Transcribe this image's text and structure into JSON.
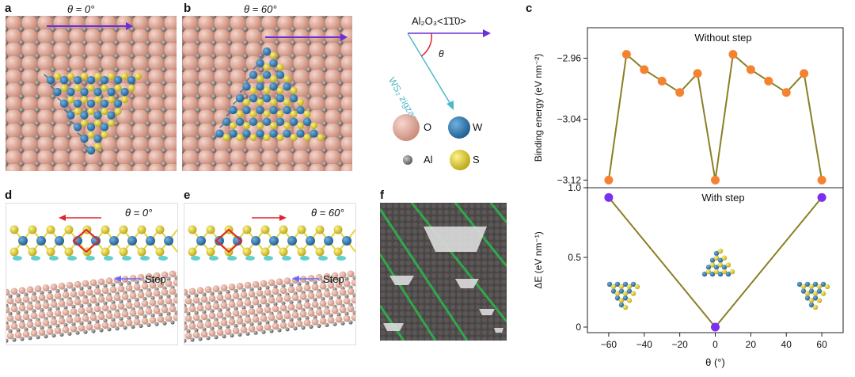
{
  "panels": {
    "a": {
      "label": "a",
      "title": "θ = 0°"
    },
    "b": {
      "label": "b",
      "title": "θ = 60°"
    },
    "c": {
      "label": "c"
    },
    "d": {
      "label": "d",
      "title": "θ = 0°",
      "step": "Step"
    },
    "e": {
      "label": "e",
      "title": "θ = 60°",
      "step": "Step"
    },
    "f": {
      "label": "f"
    }
  },
  "legend": {
    "direction_label": "Al₂O₃<1̄1̄0>",
    "zigzag_label": "WS₂ zigzag",
    "angle_label": "θ",
    "atoms": [
      {
        "symbol": "O",
        "color": "#e8b4a4"
      },
      {
        "symbol": "W",
        "color": "#2e7bb4"
      },
      {
        "symbol": "Al",
        "color": "#7d7d7d"
      },
      {
        "symbol": "S",
        "color": "#e6d43a"
      }
    ]
  },
  "colors": {
    "substrate": "#dba596",
    "tungsten": "#2e7bb4",
    "sulfur": "#e6d43a",
    "aluminum": "#777777",
    "line": "#8a7f24",
    "orange": "#f58231",
    "purple": "#7b2ff0",
    "arrow": "#6a2fd6",
    "cyan": "#4fb8c8"
  },
  "chart_data": [
    {
      "type": "line",
      "title": "Without step",
      "xlabel": "θ (°)",
      "ylabel": "Binding energy (eV nm⁻²)",
      "x": [
        -60,
        -50,
        -40,
        -30,
        -20,
        -10,
        0,
        10,
        20,
        30,
        40,
        50,
        60
      ],
      "y": [
        -3.12,
        -2.955,
        -2.975,
        -2.99,
        -3.005,
        -2.98,
        -3.12,
        -2.955,
        -2.975,
        -2.99,
        -3.005,
        -2.98,
        -3.12
      ],
      "ylim": [
        -3.13,
        -2.92
      ],
      "yticks": [
        -2.96,
        -3.04,
        -3.12
      ],
      "ytick_labels": [
        "−2.96",
        "−3.04",
        "−3.12"
      ],
      "marker_color": "#f58231"
    },
    {
      "type": "line",
      "title": "With step",
      "xlabel": "θ (°)",
      "ylabel": "ΔE (eV nm⁻¹)",
      "x": [
        -60,
        0,
        60
      ],
      "y": [
        0.93,
        0.0,
        0.93
      ],
      "xlim": [
        -72,
        72
      ],
      "ylim": [
        -0.04,
        1.0
      ],
      "xticks": [
        -60,
        -40,
        -20,
        0,
        20,
        40,
        60
      ],
      "xtick_labels": [
        "−60",
        "−40",
        "−20",
        "0",
        "20",
        "40",
        "60"
      ],
      "yticks": [
        0,
        0.5,
        1.0
      ],
      "ytick_labels": [
        "0",
        "0.5",
        "1.0"
      ],
      "marker_color": "#7b2ff0"
    }
  ]
}
